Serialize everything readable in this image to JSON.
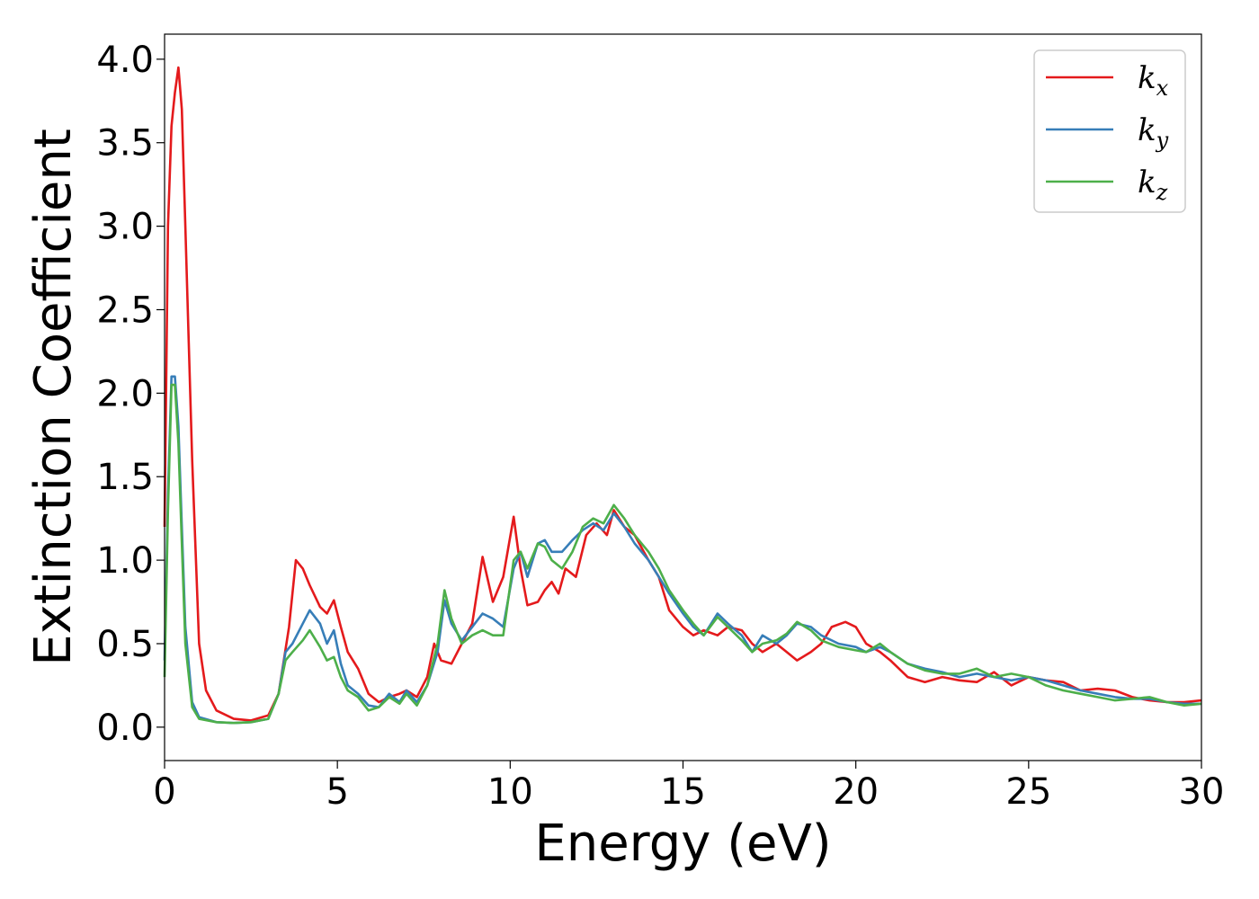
{
  "chart_data": {
    "type": "line",
    "title": "",
    "xlabel": "Energy (eV)",
    "ylabel": "Extinction Coefficient",
    "xlim": [
      0,
      30
    ],
    "ylim": [
      -0.2,
      4.15
    ],
    "xticks": [
      "0",
      "5",
      "10",
      "15",
      "20",
      "25",
      "30"
    ],
    "yticks": [
      "0.0",
      "0.5",
      "1.0",
      "1.5",
      "2.0",
      "2.5",
      "3.0",
      "3.5",
      "4.0"
    ],
    "grid": false,
    "legend_position": "top-right",
    "series": [
      {
        "name": "k_x",
        "label_base": "k",
        "label_sub": "x",
        "color": "#e41a1c",
        "points": [
          [
            0,
            1.2
          ],
          [
            0.1,
            3.0
          ],
          [
            0.2,
            3.6
          ],
          [
            0.3,
            3.8
          ],
          [
            0.4,
            3.95
          ],
          [
            0.5,
            3.7
          ],
          [
            0.6,
            3.0
          ],
          [
            0.8,
            1.6
          ],
          [
            1.0,
            0.5
          ],
          [
            1.2,
            0.22
          ],
          [
            1.5,
            0.1
          ],
          [
            2.0,
            0.05
          ],
          [
            2.5,
            0.04
          ],
          [
            3.0,
            0.07
          ],
          [
            3.3,
            0.2
          ],
          [
            3.6,
            0.6
          ],
          [
            3.8,
            1.0
          ],
          [
            4.0,
            0.95
          ],
          [
            4.2,
            0.85
          ],
          [
            4.5,
            0.72
          ],
          [
            4.7,
            0.68
          ],
          [
            4.9,
            0.76
          ],
          [
            5.1,
            0.6
          ],
          [
            5.3,
            0.45
          ],
          [
            5.6,
            0.35
          ],
          [
            5.9,
            0.2
          ],
          [
            6.2,
            0.15
          ],
          [
            6.5,
            0.18
          ],
          [
            6.8,
            0.2
          ],
          [
            7.0,
            0.22
          ],
          [
            7.3,
            0.18
          ],
          [
            7.6,
            0.3
          ],
          [
            7.8,
            0.5
          ],
          [
            8.0,
            0.4
          ],
          [
            8.3,
            0.38
          ],
          [
            8.6,
            0.5
          ],
          [
            8.9,
            0.62
          ],
          [
            9.2,
            1.02
          ],
          [
            9.5,
            0.75
          ],
          [
            9.8,
            0.9
          ],
          [
            10.1,
            1.26
          ],
          [
            10.3,
            0.95
          ],
          [
            10.5,
            0.73
          ],
          [
            10.8,
            0.75
          ],
          [
            11.0,
            0.82
          ],
          [
            11.2,
            0.87
          ],
          [
            11.4,
            0.8
          ],
          [
            11.6,
            0.95
          ],
          [
            11.9,
            0.9
          ],
          [
            12.2,
            1.15
          ],
          [
            12.5,
            1.22
          ],
          [
            12.8,
            1.15
          ],
          [
            13.0,
            1.3
          ],
          [
            13.3,
            1.2
          ],
          [
            13.6,
            1.15
          ],
          [
            14.0,
            1.0
          ],
          [
            14.3,
            0.9
          ],
          [
            14.6,
            0.7
          ],
          [
            15.0,
            0.6
          ],
          [
            15.3,
            0.55
          ],
          [
            15.6,
            0.58
          ],
          [
            16.0,
            0.55
          ],
          [
            16.3,
            0.6
          ],
          [
            16.7,
            0.58
          ],
          [
            17.0,
            0.5
          ],
          [
            17.3,
            0.45
          ],
          [
            17.7,
            0.5
          ],
          [
            18.0,
            0.45
          ],
          [
            18.3,
            0.4
          ],
          [
            18.7,
            0.45
          ],
          [
            19.0,
            0.5
          ],
          [
            19.3,
            0.6
          ],
          [
            19.7,
            0.63
          ],
          [
            20.0,
            0.6
          ],
          [
            20.3,
            0.5
          ],
          [
            20.7,
            0.45
          ],
          [
            21.0,
            0.4
          ],
          [
            21.5,
            0.3
          ],
          [
            22.0,
            0.27
          ],
          [
            22.5,
            0.3
          ],
          [
            23.0,
            0.28
          ],
          [
            23.5,
            0.27
          ],
          [
            24.0,
            0.33
          ],
          [
            24.5,
            0.25
          ],
          [
            25.0,
            0.3
          ],
          [
            25.5,
            0.28
          ],
          [
            26.0,
            0.27
          ],
          [
            26.5,
            0.22
          ],
          [
            27.0,
            0.23
          ],
          [
            27.5,
            0.22
          ],
          [
            28.0,
            0.18
          ],
          [
            28.5,
            0.16
          ],
          [
            29.0,
            0.15
          ],
          [
            29.5,
            0.15
          ],
          [
            30.0,
            0.16
          ]
        ]
      },
      {
        "name": "k_y",
        "label_base": "k",
        "label_sub": "y",
        "color": "#377eb8",
        "points": [
          [
            0,
            0.4
          ],
          [
            0.1,
            1.4
          ],
          [
            0.2,
            2.1
          ],
          [
            0.3,
            2.1
          ],
          [
            0.4,
            1.8
          ],
          [
            0.5,
            1.2
          ],
          [
            0.6,
            0.6
          ],
          [
            0.8,
            0.15
          ],
          [
            1.0,
            0.06
          ],
          [
            1.5,
            0.03
          ],
          [
            2.0,
            0.025
          ],
          [
            2.5,
            0.03
          ],
          [
            3.0,
            0.05
          ],
          [
            3.3,
            0.2
          ],
          [
            3.5,
            0.45
          ],
          [
            3.7,
            0.5
          ],
          [
            4.0,
            0.62
          ],
          [
            4.2,
            0.7
          ],
          [
            4.5,
            0.62
          ],
          [
            4.7,
            0.5
          ],
          [
            4.9,
            0.58
          ],
          [
            5.1,
            0.38
          ],
          [
            5.3,
            0.25
          ],
          [
            5.6,
            0.2
          ],
          [
            5.9,
            0.13
          ],
          [
            6.2,
            0.12
          ],
          [
            6.5,
            0.2
          ],
          [
            6.8,
            0.15
          ],
          [
            7.0,
            0.22
          ],
          [
            7.3,
            0.15
          ],
          [
            7.6,
            0.25
          ],
          [
            7.9,
            0.45
          ],
          [
            8.1,
            0.76
          ],
          [
            8.3,
            0.62
          ],
          [
            8.6,
            0.52
          ],
          [
            8.9,
            0.6
          ],
          [
            9.2,
            0.68
          ],
          [
            9.5,
            0.65
          ],
          [
            9.8,
            0.6
          ],
          [
            10.1,
            0.95
          ],
          [
            10.3,
            1.05
          ],
          [
            10.5,
            0.9
          ],
          [
            10.8,
            1.1
          ],
          [
            11.0,
            1.12
          ],
          [
            11.2,
            1.05
          ],
          [
            11.5,
            1.05
          ],
          [
            11.8,
            1.12
          ],
          [
            12.1,
            1.18
          ],
          [
            12.4,
            1.22
          ],
          [
            12.7,
            1.18
          ],
          [
            13.0,
            1.28
          ],
          [
            13.3,
            1.2
          ],
          [
            13.6,
            1.1
          ],
          [
            14.0,
            1.0
          ],
          [
            14.3,
            0.9
          ],
          [
            14.6,
            0.8
          ],
          [
            15.0,
            0.68
          ],
          [
            15.3,
            0.6
          ],
          [
            15.6,
            0.55
          ],
          [
            16.0,
            0.68
          ],
          [
            16.3,
            0.62
          ],
          [
            16.7,
            0.55
          ],
          [
            17.0,
            0.45
          ],
          [
            17.3,
            0.55
          ],
          [
            17.7,
            0.5
          ],
          [
            18.0,
            0.55
          ],
          [
            18.3,
            0.62
          ],
          [
            18.7,
            0.6
          ],
          [
            19.0,
            0.55
          ],
          [
            19.5,
            0.5
          ],
          [
            20.0,
            0.48
          ],
          [
            20.3,
            0.45
          ],
          [
            20.7,
            0.48
          ],
          [
            21.0,
            0.45
          ],
          [
            21.5,
            0.38
          ],
          [
            22.0,
            0.35
          ],
          [
            22.5,
            0.33
          ],
          [
            23.0,
            0.3
          ],
          [
            23.5,
            0.32
          ],
          [
            24.0,
            0.3
          ],
          [
            24.5,
            0.28
          ],
          [
            25.0,
            0.3
          ],
          [
            25.5,
            0.28
          ],
          [
            26.0,
            0.25
          ],
          [
            26.5,
            0.22
          ],
          [
            27.0,
            0.2
          ],
          [
            27.5,
            0.18
          ],
          [
            28.0,
            0.17
          ],
          [
            28.5,
            0.17
          ],
          [
            29.0,
            0.15
          ],
          [
            29.5,
            0.14
          ],
          [
            30.0,
            0.14
          ]
        ]
      },
      {
        "name": "k_z",
        "label_base": "k",
        "label_sub": "z",
        "color": "#4daf4a",
        "points": [
          [
            0,
            0.3
          ],
          [
            0.1,
            1.3
          ],
          [
            0.2,
            2.05
          ],
          [
            0.3,
            2.05
          ],
          [
            0.4,
            1.7
          ],
          [
            0.5,
            1.1
          ],
          [
            0.6,
            0.5
          ],
          [
            0.8,
            0.12
          ],
          [
            1.0,
            0.05
          ],
          [
            1.5,
            0.03
          ],
          [
            2.0,
            0.025
          ],
          [
            2.5,
            0.03
          ],
          [
            3.0,
            0.05
          ],
          [
            3.3,
            0.2
          ],
          [
            3.5,
            0.4
          ],
          [
            3.7,
            0.45
          ],
          [
            4.0,
            0.52
          ],
          [
            4.2,
            0.58
          ],
          [
            4.5,
            0.48
          ],
          [
            4.7,
            0.4
          ],
          [
            4.9,
            0.42
          ],
          [
            5.1,
            0.3
          ],
          [
            5.3,
            0.22
          ],
          [
            5.6,
            0.18
          ],
          [
            5.9,
            0.1
          ],
          [
            6.2,
            0.12
          ],
          [
            6.5,
            0.18
          ],
          [
            6.8,
            0.14
          ],
          [
            7.0,
            0.2
          ],
          [
            7.3,
            0.13
          ],
          [
            7.6,
            0.25
          ],
          [
            7.9,
            0.5
          ],
          [
            8.1,
            0.82
          ],
          [
            8.3,
            0.65
          ],
          [
            8.6,
            0.5
          ],
          [
            8.9,
            0.55
          ],
          [
            9.2,
            0.58
          ],
          [
            9.5,
            0.55
          ],
          [
            9.8,
            0.55
          ],
          [
            10.1,
            1.0
          ],
          [
            10.3,
            1.05
          ],
          [
            10.5,
            0.95
          ],
          [
            10.8,
            1.1
          ],
          [
            11.0,
            1.08
          ],
          [
            11.2,
            1.0
          ],
          [
            11.5,
            0.95
          ],
          [
            11.8,
            1.05
          ],
          [
            12.1,
            1.2
          ],
          [
            12.4,
            1.25
          ],
          [
            12.7,
            1.22
          ],
          [
            13.0,
            1.33
          ],
          [
            13.3,
            1.25
          ],
          [
            13.6,
            1.15
          ],
          [
            14.0,
            1.05
          ],
          [
            14.3,
            0.95
          ],
          [
            14.6,
            0.82
          ],
          [
            15.0,
            0.7
          ],
          [
            15.3,
            0.62
          ],
          [
            15.6,
            0.55
          ],
          [
            16.0,
            0.66
          ],
          [
            16.3,
            0.6
          ],
          [
            16.7,
            0.52
          ],
          [
            17.0,
            0.45
          ],
          [
            17.3,
            0.5
          ],
          [
            17.7,
            0.52
          ],
          [
            18.0,
            0.56
          ],
          [
            18.3,
            0.63
          ],
          [
            18.7,
            0.58
          ],
          [
            19.0,
            0.52
          ],
          [
            19.5,
            0.48
          ],
          [
            20.0,
            0.46
          ],
          [
            20.3,
            0.45
          ],
          [
            20.7,
            0.5
          ],
          [
            21.0,
            0.45
          ],
          [
            21.5,
            0.38
          ],
          [
            22.0,
            0.34
          ],
          [
            22.5,
            0.32
          ],
          [
            23.0,
            0.32
          ],
          [
            23.5,
            0.35
          ],
          [
            24.0,
            0.3
          ],
          [
            24.5,
            0.32
          ],
          [
            25.0,
            0.3
          ],
          [
            25.5,
            0.25
          ],
          [
            26.0,
            0.22
          ],
          [
            26.5,
            0.2
          ],
          [
            27.0,
            0.18
          ],
          [
            27.5,
            0.16
          ],
          [
            28.0,
            0.17
          ],
          [
            28.5,
            0.18
          ],
          [
            29.0,
            0.15
          ],
          [
            29.5,
            0.13
          ],
          [
            30.0,
            0.14
          ]
        ]
      }
    ]
  }
}
